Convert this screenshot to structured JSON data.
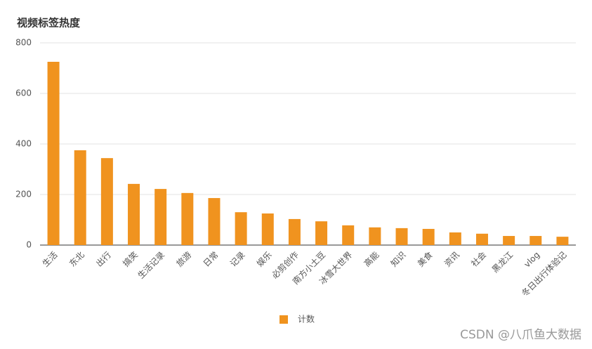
{
  "chart_data": {
    "type": "bar",
    "title": "视频标签热度",
    "categories": [
      "生活",
      "东北",
      "出行",
      "搞笑",
      "生活记录",
      "旅游",
      "日常",
      "记录",
      "娱乐",
      "必剪创作",
      "南方小土豆",
      "冰雪大世界",
      "高能",
      "知识",
      "美食",
      "资讯",
      "社会",
      "黑龙江",
      "vlog",
      "冬日出行体验记"
    ],
    "series": [
      {
        "name": "计数",
        "color": "#f0931f",
        "values": [
          725,
          375,
          344,
          242,
          222,
          206,
          186,
          130,
          125,
          103,
          94,
          78,
          70,
          67,
          64,
          50,
          45,
          36,
          36,
          33
        ]
      }
    ],
    "ylim": [
      0,
      800
    ],
    "yticks": [
      0,
      200,
      400,
      600,
      800
    ],
    "grid": true,
    "legend": "bottom"
  },
  "watermark": "CSDN @八爪鱼大数据"
}
